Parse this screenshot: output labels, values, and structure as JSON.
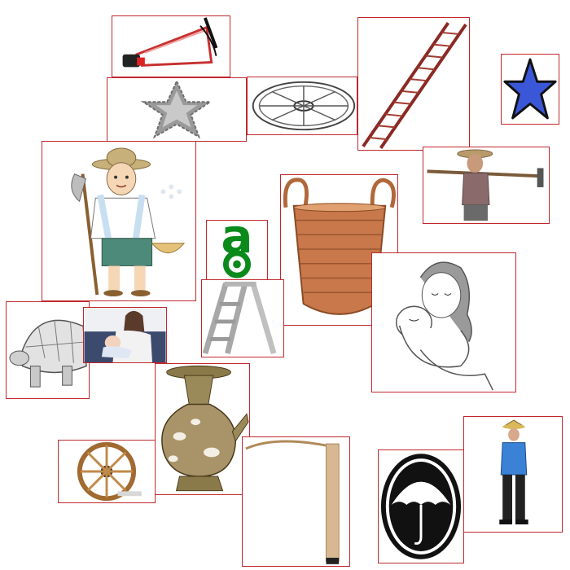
{
  "canvas": {
    "background": "#ffffff",
    "tile_border_color": "#c0282d"
  },
  "tiles": [
    {
      "id": "megaphone",
      "icon": "megaphone-icon"
    },
    {
      "id": "pixel-star",
      "icon": "star-icon"
    },
    {
      "id": "cart-wheel-sketch",
      "icon": "wheel-icon"
    },
    {
      "id": "extension-ladder",
      "icon": "ladder-icon"
    },
    {
      "id": "blue-star",
      "icon": "star-icon",
      "color": "#3a57d8"
    },
    {
      "id": "farmer-with-hoe-and-basket",
      "icon": "farmer-icon"
    },
    {
      "id": "man-carrying-hoe",
      "icon": "farmer-icon"
    },
    {
      "id": "open-access-logo",
      "icon": "open-access-icon",
      "glyph": "a",
      "color": "#0a8a1a"
    },
    {
      "id": "woven-basket",
      "icon": "basket-icon"
    },
    {
      "id": "mother-holding-baby-sketch",
      "icon": "mother-baby-icon"
    },
    {
      "id": "step-ladder",
      "icon": "step-ladder-icon"
    },
    {
      "id": "tortoise-sketch",
      "icon": "tortoise-icon"
    },
    {
      "id": "mother-and-baby-photo",
      "icon": "mother-baby-icon"
    },
    {
      "id": "brass-water-vessel",
      "icon": "vessel-icon"
    },
    {
      "id": "wooden-cart-wheel",
      "icon": "wheel-icon"
    },
    {
      "id": "walking-stick",
      "icon": "cane-icon"
    },
    {
      "id": "umbrella-sign",
      "icon": "umbrella-icon"
    },
    {
      "id": "man-with-straw-hat",
      "icon": "person-icon"
    }
  ]
}
